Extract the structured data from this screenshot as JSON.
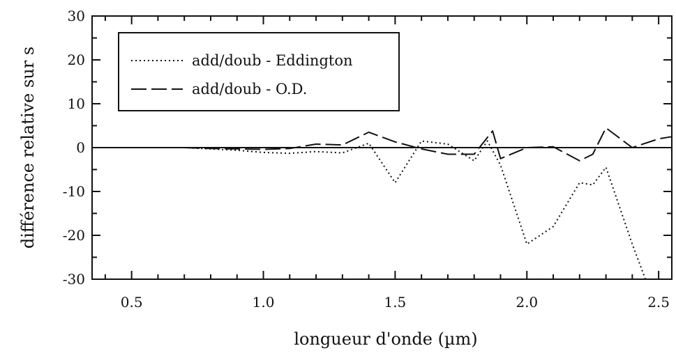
{
  "chart_data": {
    "type": "line",
    "title": "",
    "xlabel": "longueur d'onde (µm)",
    "ylabel": "différence relative sur s",
    "xlim": [
      0.35,
      2.55
    ],
    "ylim": [
      -30,
      30
    ],
    "x_ticks": [
      0.5,
      1.0,
      1.5,
      2.0,
      2.5
    ],
    "x_tick_labels": [
      "0.5",
      "1.0",
      "1.5",
      "2.0",
      "2.5"
    ],
    "y_ticks": [
      30,
      20,
      10,
      0,
      -10,
      -20,
      -30
    ],
    "y_tick_labels": [
      "30",
      "20",
      "10",
      "0",
      "-10",
      "-20",
      "-30"
    ],
    "grid": false,
    "legend_position": "top-left",
    "zero_line": true,
    "series": [
      {
        "name": "add/doub - Eddington",
        "style": "dotted",
        "x": [
          0.7,
          0.8,
          0.9,
          1.0,
          1.1,
          1.2,
          1.3,
          1.4,
          1.5,
          1.6,
          1.7,
          1.8,
          1.85,
          1.9,
          2.0,
          2.1,
          2.2,
          2.25,
          2.3,
          2.4,
          2.45
        ],
        "values": [
          0.0,
          -0.3,
          -0.6,
          -1.1,
          -1.3,
          -0.9,
          -1.2,
          1.0,
          -8.0,
          1.5,
          0.8,
          -3.0,
          1.5,
          -4.0,
          -22.0,
          -18.0,
          -8.0,
          -8.5,
          -4.5,
          -22.0,
          -30.0
        ]
      },
      {
        "name": "add/doub - O.D.",
        "style": "dashed",
        "x": [
          0.7,
          0.8,
          0.9,
          1.0,
          1.1,
          1.2,
          1.3,
          1.4,
          1.5,
          1.6,
          1.7,
          1.8,
          1.87,
          1.9,
          2.0,
          2.1,
          2.2,
          2.25,
          2.3,
          2.4,
          2.5,
          2.55
        ],
        "values": [
          0.0,
          -0.2,
          -0.3,
          -0.4,
          -0.2,
          0.8,
          0.6,
          3.5,
          1.3,
          -0.3,
          -1.5,
          -1.5,
          3.8,
          -2.5,
          0.0,
          0.2,
          -3.0,
          -1.5,
          4.5,
          0.0,
          2.0,
          2.5
        ]
      }
    ]
  }
}
